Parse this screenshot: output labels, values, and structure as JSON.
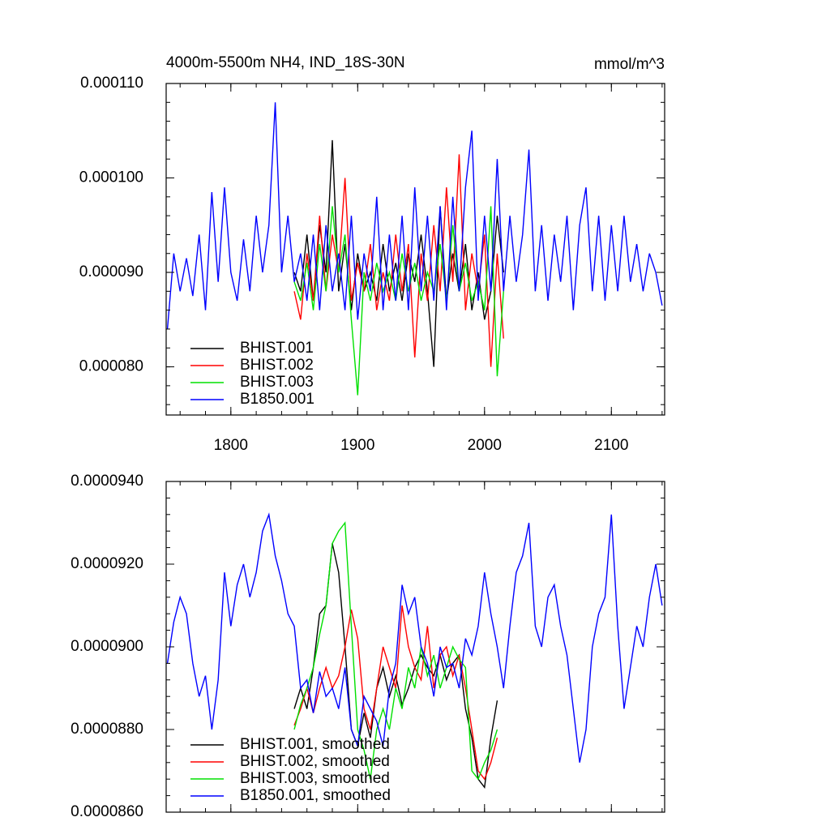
{
  "chart_data": [
    {
      "type": "line",
      "title": "4000m-5500m NH4, IND_18S-30N",
      "units": "mmol/m^3",
      "xlim": [
        1749,
        2142
      ],
      "xticks": [
        1800,
        1900,
        2000,
        2100
      ],
      "ylim": [
        7.49e-05,
        0.00011
      ],
      "yticks": [
        {
          "value": 8e-05,
          "label": "0.000080"
        },
        {
          "value": 9e-05,
          "label": "0.000090"
        },
        {
          "value": 0.0001,
          "label": "0.000100"
        },
        {
          "value": 0.00011,
          "label": "0.000110"
        }
      ],
      "series": [
        {
          "name": "BHIST.001",
          "color": "#000000",
          "x": [
            1850,
            1855,
            1860,
            1865,
            1870,
            1875,
            1880,
            1885,
            1890,
            1895,
            1900,
            1905,
            1910,
            1915,
            1920,
            1925,
            1930,
            1935,
            1940,
            1945,
            1950,
            1955,
            1960,
            1965,
            1970,
            1975,
            1980,
            1985,
            1990,
            1995,
            2000,
            2005,
            2010,
            2015
          ],
          "values": [
            9e-05,
            8.8e-05,
            9.4e-05,
            8.7e-05,
            9.5e-05,
            9e-05,
            0.000104,
            8.8e-05,
            9.3e-05,
            8.6e-05,
            9.2e-05,
            8.8e-05,
            9e-05,
            8.7e-05,
            9.3e-05,
            8.8e-05,
            9.1e-05,
            8.7e-05,
            9.2e-05,
            8.9e-05,
            9.4e-05,
            8.8e-05,
            8e-05,
            9.7e-05,
            8.7e-05,
            9.2e-05,
            8.8e-05,
            9.3e-05,
            8.6e-05,
            9e-05,
            8.5e-05,
            8.8e-05,
            9.6e-05,
            9e-05
          ]
        },
        {
          "name": "BHIST.002",
          "color": "#ff0000",
          "x": [
            1850,
            1855,
            1860,
            1865,
            1870,
            1875,
            1880,
            1885,
            1890,
            1895,
            1900,
            1905,
            1910,
            1915,
            1920,
            1925,
            1930,
            1935,
            1940,
            1945,
            1950,
            1955,
            1960,
            1965,
            1970,
            1975,
            1980,
            1985,
            1990,
            1995,
            2000,
            2005,
            2010,
            2015
          ],
          "values": [
            8.8e-05,
            8.5e-05,
            9.2e-05,
            8.7e-05,
            9.6e-05,
            8.8e-05,
            9.4e-05,
            9e-05,
            0.0001,
            8.7e-05,
            9.1e-05,
            8.8e-05,
            9.3e-05,
            8.6e-05,
            9e-05,
            8.7e-05,
            9.4e-05,
            8.8e-05,
            9.3e-05,
            8.1e-05,
            9.2e-05,
            8.7e-05,
            9.5e-05,
            8.8e-05,
            9.9e-05,
            8.9e-05,
            0.0001025,
            8.6e-05,
            9.2e-05,
            8.8e-05,
            9.4e-05,
            8e-05,
            9.2e-05,
            8.3e-05
          ]
        },
        {
          "name": "BHIST.003",
          "color": "#00e000",
          "x": [
            1850,
            1855,
            1860,
            1865,
            1870,
            1875,
            1880,
            1885,
            1890,
            1895,
            1900,
            1905,
            1910,
            1915,
            1920,
            1925,
            1930,
            1935,
            1940,
            1945,
            1950,
            1955,
            1960,
            1965,
            1970,
            1975,
            1980,
            1985,
            1990,
            1995,
            2000,
            2005,
            2010,
            2015
          ],
          "values": [
            8.9e-05,
            8.7e-05,
            9.1e-05,
            8.6e-05,
            9.3e-05,
            8.8e-05,
            9.7e-05,
            9e-05,
            9.4e-05,
            8.5e-05,
            7.7e-05,
            9e-05,
            8.7e-05,
            9.1e-05,
            8.8e-05,
            9e-05,
            8.7e-05,
            9.2e-05,
            8.8e-05,
            9.1e-05,
            8.7e-05,
            9e-05,
            8.8e-05,
            9.3e-05,
            8.7e-05,
            9.5e-05,
            8.8e-05,
            9.1e-05,
            8.7e-05,
            8.9e-05,
            8.6e-05,
            9.7e-05,
            7.9e-05,
            8.8e-05
          ]
        },
        {
          "name": "B1850.001",
          "color": "#0000ff",
          "x": [
            1750,
            1755,
            1760,
            1765,
            1770,
            1775,
            1780,
            1785,
            1790,
            1795,
            1800,
            1805,
            1810,
            1815,
            1820,
            1825,
            1830,
            1835,
            1840,
            1845,
            1850,
            1855,
            1860,
            1865,
            1870,
            1875,
            1880,
            1885,
            1890,
            1895,
            1900,
            1905,
            1910,
            1915,
            1920,
            1925,
            1930,
            1935,
            1940,
            1945,
            1950,
            1955,
            1960,
            1965,
            1970,
            1975,
            1980,
            1985,
            1990,
            1995,
            2000,
            2005,
            2010,
            2015,
            2020,
            2025,
            2030,
            2035,
            2040,
            2045,
            2050,
            2055,
            2060,
            2065,
            2070,
            2075,
            2080,
            2085,
            2090,
            2095,
            2100,
            2105,
            2110,
            2115,
            2120,
            2125,
            2130,
            2135,
            2140
          ],
          "values": [
            8.4e-05,
            9.2e-05,
            8.8e-05,
            9.15e-05,
            8.75e-05,
            9.4e-05,
            8.6e-05,
            9.85e-05,
            8.9e-05,
            9.9e-05,
            9e-05,
            8.7e-05,
            9.35e-05,
            8.8e-05,
            9.6e-05,
            9e-05,
            9.5e-05,
            0.000108,
            9e-05,
            9.6e-05,
            8.9e-05,
            9.2e-05,
            8.7e-05,
            9.4e-05,
            8.6e-05,
            9.5e-05,
            8.8e-05,
            9.2e-05,
            8.6e-05,
            9.6e-05,
            8.5e-05,
            9.2e-05,
            8.8e-05,
            9.8e-05,
            8.6e-05,
            9.4e-05,
            8.7e-05,
            9.6e-05,
            8.6e-05,
            9.9e-05,
            8.8e-05,
            9.6e-05,
            8.7e-05,
            9.7e-05,
            8.6e-05,
            9.8e-05,
            8.8e-05,
            9.9e-05,
            0.000105,
            8.7e-05,
            9.6e-05,
            8.8e-05,
            0.000102,
            8.8e-05,
            9.6e-05,
            8.9e-05,
            9.4e-05,
            0.000103,
            8.8e-05,
            9.5e-05,
            8.7e-05,
            9.4e-05,
            8.9e-05,
            9.6e-05,
            8.6e-05,
            9.5e-05,
            9.9e-05,
            8.8e-05,
            9.6e-05,
            8.7e-05,
            9.5e-05,
            8.8e-05,
            9.6e-05,
            8.9e-05,
            9.3e-05,
            8.8e-05,
            9.2e-05,
            9e-05,
            8.65e-05
          ]
        }
      ]
    },
    {
      "type": "line",
      "xlim": [
        1749,
        2142
      ],
      "xticks": [
        1800,
        1900,
        2000,
        2100
      ],
      "ylim": [
        8.6e-05,
        9.4e-05
      ],
      "yticks": [
        {
          "value": 8.6e-05,
          "label": "0.0000860"
        },
        {
          "value": 8.8e-05,
          "label": "0.0000880"
        },
        {
          "value": 9e-05,
          "label": "0.0000900"
        },
        {
          "value": 9.2e-05,
          "label": "0.0000920"
        },
        {
          "value": 9.4e-05,
          "label": "0.0000940"
        }
      ],
      "series": [
        {
          "name": "BHIST.001, smoothed",
          "color": "#000000",
          "x": [
            1850,
            1855,
            1860,
            1865,
            1870,
            1875,
            1880,
            1885,
            1890,
            1895,
            1900,
            1905,
            1910,
            1915,
            1920,
            1925,
            1930,
            1935,
            1940,
            1945,
            1950,
            1955,
            1960,
            1965,
            1970,
            1975,
            1980,
            1985,
            1990,
            1995,
            2000,
            2005,
            2010
          ],
          "values": [
            8.85e-05,
            8.9e-05,
            8.85e-05,
            8.95e-05,
            9.08e-05,
            9.1e-05,
            9.25e-05,
            9.18e-05,
            9e-05,
            8.8e-05,
            8.76e-05,
            8.84e-05,
            8.78e-05,
            8.9e-05,
            8.95e-05,
            8.88e-05,
            8.93e-05,
            8.86e-05,
            8.9e-05,
            8.95e-05,
            8.98e-05,
            8.95e-05,
            8.93e-05,
            8.98e-05,
            8.92e-05,
            8.96e-05,
            8.98e-05,
            8.85e-05,
            8.78e-05,
            8.68e-05,
            8.66e-05,
            8.78e-05,
            8.87e-05
          ]
        },
        {
          "name": "BHIST.002, smoothed",
          "color": "#ff0000",
          "x": [
            1850,
            1855,
            1860,
            1865,
            1870,
            1875,
            1880,
            1885,
            1890,
            1895,
            1900,
            1905,
            1910,
            1915,
            1920,
            1925,
            1930,
            1935,
            1940,
            1945,
            1950,
            1955,
            1960,
            1965,
            1970,
            1975,
            1980,
            1985,
            1990,
            1995,
            2000,
            2005,
            2010
          ],
          "values": [
            8.81e-05,
            8.85e-05,
            8.9e-05,
            8.84e-05,
            8.9e-05,
            8.95e-05,
            8.9e-05,
            8.93e-05,
            9e-05,
            9.09e-05,
            9.02e-05,
            8.85e-05,
            8.8e-05,
            8.9e-05,
            9e-05,
            8.95e-05,
            8.9e-05,
            9.1e-05,
            9e-05,
            8.95e-05,
            8.92e-05,
            9.05e-05,
            8.9e-05,
            8.98e-05,
            9e-05,
            8.93e-05,
            8.98e-05,
            8.9e-05,
            8.8e-05,
            8.7e-05,
            8.68e-05,
            8.72e-05,
            8.78e-05
          ]
        },
        {
          "name": "BHIST.003, smoothed",
          "color": "#00e000",
          "x": [
            1850,
            1855,
            1860,
            1865,
            1870,
            1875,
            1880,
            1885,
            1890,
            1895,
            1900,
            1905,
            1910,
            1915,
            1920,
            1925,
            1930,
            1935,
            1940,
            1945,
            1950,
            1955,
            1960,
            1965,
            1970,
            1975,
            1980,
            1985,
            1990,
            1995,
            2000,
            2005,
            2010
          ],
          "values": [
            8.8e-05,
            8.86e-05,
            8.9e-05,
            8.95e-05,
            9.03e-05,
            9.1e-05,
            9.25e-05,
            9.28e-05,
            9.3e-05,
            9.05e-05,
            8.8e-05,
            8.75e-05,
            8.68e-05,
            8.8e-05,
            8.85e-05,
            8.8e-05,
            8.9e-05,
            8.85e-05,
            8.95e-05,
            8.9e-05,
            9e-05,
            8.93e-05,
            8.98e-05,
            8.9e-05,
            8.95e-05,
            9e-05,
            8.97e-05,
            8.95e-05,
            8.7e-05,
            8.68e-05,
            8.72e-05,
            8.75e-05,
            8.8e-05
          ]
        },
        {
          "name": "B1850.001, smoothed",
          "color": "#0000ff",
          "x": [
            1750,
            1755,
            1760,
            1765,
            1770,
            1775,
            1780,
            1785,
            1790,
            1795,
            1800,
            1805,
            1810,
            1815,
            1820,
            1825,
            1830,
            1835,
            1840,
            1845,
            1850,
            1855,
            1860,
            1865,
            1870,
            1875,
            1880,
            1885,
            1890,
            1895,
            1900,
            1905,
            1910,
            1915,
            1920,
            1925,
            1930,
            1935,
            1940,
            1945,
            1950,
            1955,
            1960,
            1965,
            1970,
            1975,
            1980,
            1985,
            1990,
            1995,
            2000,
            2005,
            2010,
            2015,
            2020,
            2025,
            2030,
            2035,
            2040,
            2045,
            2050,
            2055,
            2060,
            2065,
            2070,
            2075,
            2080,
            2085,
            2090,
            2095,
            2100,
            2105,
            2110,
            2115,
            2120,
            2125,
            2130,
            2135,
            2140
          ],
          "values": [
            8.96e-05,
            9.06e-05,
            9.12e-05,
            9.08e-05,
            8.96e-05,
            8.88e-05,
            8.93e-05,
            8.8e-05,
            8.92e-05,
            9.18e-05,
            9.05e-05,
            9.15e-05,
            9.2e-05,
            9.12e-05,
            9.18e-05,
            9.28e-05,
            9.32e-05,
            9.22e-05,
            9.16e-05,
            9.08e-05,
            9.05e-05,
            8.9e-05,
            8.92e-05,
            8.84e-05,
            8.94e-05,
            8.88e-05,
            8.9e-05,
            8.85e-05,
            8.95e-05,
            8.8e-05,
            8.76e-05,
            8.88e-05,
            8.85e-05,
            8.82e-05,
            8.76e-05,
            8.9e-05,
            8.96e-05,
            9.15e-05,
            9.08e-05,
            9.12e-05,
            9e-05,
            8.96e-05,
            8.88e-05,
            9e-05,
            8.95e-05,
            8.96e-05,
            8.9e-05,
            9.02e-05,
            8.98e-05,
            9.05e-05,
            9.18e-05,
            9.08e-05,
            9e-05,
            8.9e-05,
            9.05e-05,
            9.18e-05,
            9.22e-05,
            9.3e-05,
            9.05e-05,
            9e-05,
            9.12e-05,
            9.15e-05,
            9.05e-05,
            8.98e-05,
            8.85e-05,
            8.72e-05,
            8.8e-05,
            9e-05,
            9.08e-05,
            9.12e-05,
            9.32e-05,
            9.05e-05,
            8.85e-05,
            8.95e-05,
            9.05e-05,
            9e-05,
            9.12e-05,
            9.2e-05,
            9.1e-05
          ]
        }
      ]
    }
  ]
}
